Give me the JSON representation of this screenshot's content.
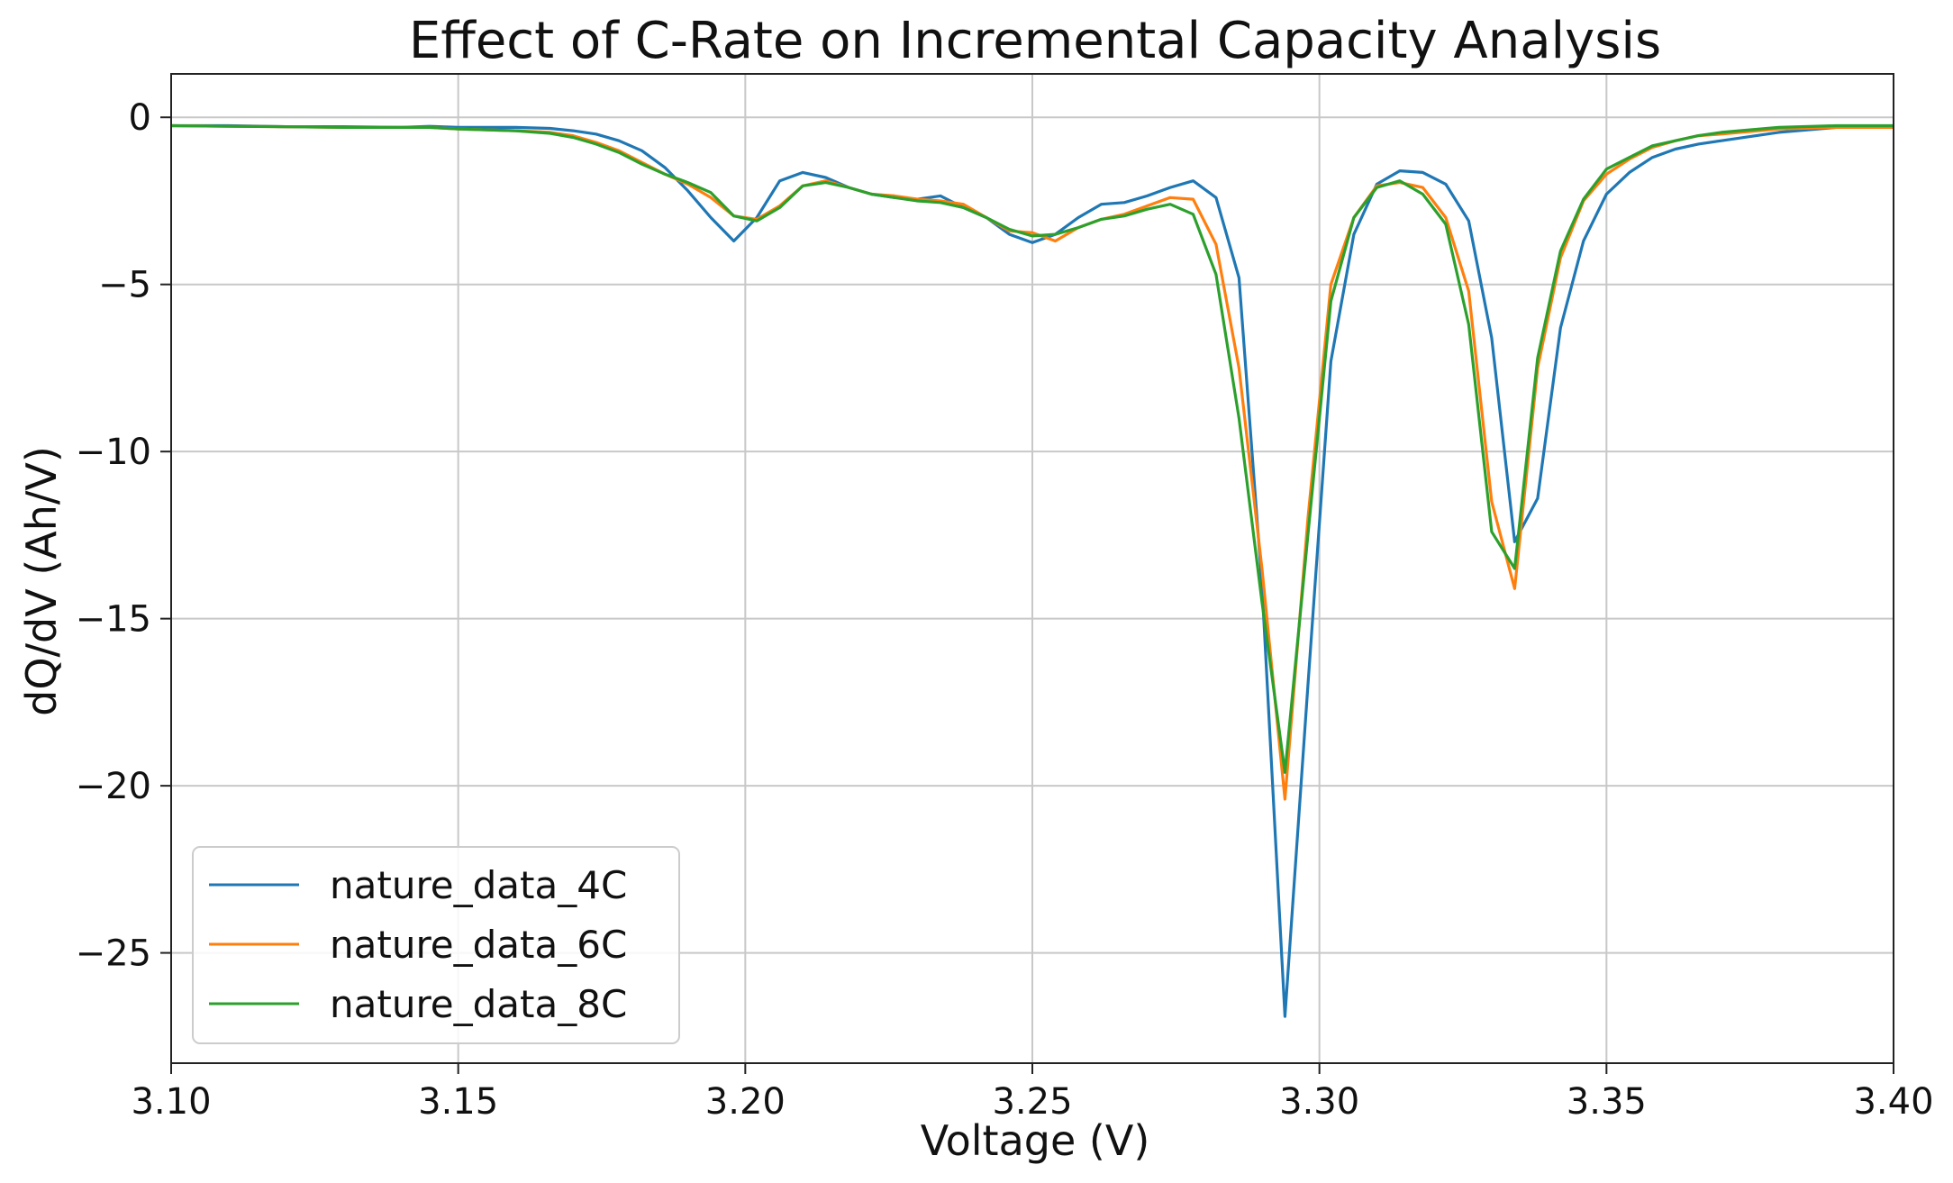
{
  "chart_data": {
    "type": "line",
    "title": "Effect of C-Rate on Incremental Capacity Analysis",
    "xlabel": "Voltage (V)",
    "ylabel": "dQ/dV (Ah/V)",
    "xlim": [
      3.1,
      3.4
    ],
    "ylim": [
      -28.3,
      1.3
    ],
    "xticks": [
      3.1,
      3.15,
      3.2,
      3.25,
      3.3,
      3.35,
      3.4
    ],
    "xtick_labels": [
      "3.10",
      "3.15",
      "3.20",
      "3.25",
      "3.30",
      "3.35",
      "3.40"
    ],
    "yticks": [
      0,
      -5,
      -10,
      -15,
      -20,
      -25
    ],
    "ytick_labels": [
      "0",
      "−5",
      "−10",
      "−15",
      "−20",
      "−25"
    ],
    "grid": true,
    "legend_position": "lower-left",
    "series": [
      {
        "name": "nature_data_4C",
        "color": "#1f77b4",
        "x": [
          3.1,
          3.11,
          3.12,
          3.13,
          3.14,
          3.145,
          3.15,
          3.16,
          3.166,
          3.17,
          3.174,
          3.178,
          3.182,
          3.186,
          3.19,
          3.194,
          3.198,
          3.202,
          3.206,
          3.21,
          3.214,
          3.218,
          3.222,
          3.226,
          3.23,
          3.234,
          3.238,
          3.242,
          3.246,
          3.25,
          3.254,
          3.258,
          3.262,
          3.266,
          3.27,
          3.274,
          3.278,
          3.282,
          3.286,
          3.29,
          3.294,
          3.298,
          3.302,
          3.306,
          3.31,
          3.314,
          3.318,
          3.322,
          3.326,
          3.33,
          3.334,
          3.338,
          3.342,
          3.346,
          3.35,
          3.354,
          3.358,
          3.362,
          3.366,
          3.37,
          3.38,
          3.39,
          3.4
        ],
        "y": [
          -0.25,
          -0.25,
          -0.28,
          -0.28,
          -0.3,
          -0.27,
          -0.3,
          -0.3,
          -0.33,
          -0.4,
          -0.5,
          -0.7,
          -1.0,
          -1.5,
          -2.2,
          -3.0,
          -3.7,
          -3.0,
          -1.9,
          -1.65,
          -1.8,
          -2.1,
          -2.3,
          -2.4,
          -2.45,
          -2.35,
          -2.7,
          -3.0,
          -3.5,
          -3.75,
          -3.5,
          -3.0,
          -2.6,
          -2.55,
          -2.35,
          -2.1,
          -1.9,
          -2.4,
          -4.8,
          -14.0,
          -26.9,
          -17.0,
          -7.3,
          -3.5,
          -2.0,
          -1.6,
          -1.65,
          -2.0,
          -3.1,
          -6.6,
          -12.7,
          -11.4,
          -6.3,
          -3.7,
          -2.3,
          -1.65,
          -1.2,
          -0.95,
          -0.8,
          -0.7,
          -0.45,
          -0.3,
          -0.3
        ]
      },
      {
        "name": "nature_data_6C",
        "color": "#ff7f0e",
        "x": [
          3.1,
          3.11,
          3.12,
          3.13,
          3.14,
          3.145,
          3.15,
          3.16,
          3.166,
          3.17,
          3.174,
          3.178,
          3.182,
          3.186,
          3.19,
          3.194,
          3.198,
          3.202,
          3.206,
          3.21,
          3.214,
          3.218,
          3.222,
          3.226,
          3.23,
          3.234,
          3.238,
          3.242,
          3.246,
          3.25,
          3.254,
          3.258,
          3.262,
          3.266,
          3.27,
          3.274,
          3.278,
          3.282,
          3.286,
          3.29,
          3.294,
          3.298,
          3.302,
          3.306,
          3.31,
          3.314,
          3.318,
          3.322,
          3.326,
          3.33,
          3.334,
          3.338,
          3.342,
          3.346,
          3.35,
          3.354,
          3.358,
          3.362,
          3.366,
          3.37,
          3.38,
          3.39,
          3.4
        ],
        "y": [
          -0.25,
          -0.27,
          -0.28,
          -0.3,
          -0.3,
          -0.3,
          -0.35,
          -0.4,
          -0.45,
          -0.55,
          -0.75,
          -1.0,
          -1.35,
          -1.7,
          -2.0,
          -2.4,
          -2.95,
          -3.05,
          -2.65,
          -2.05,
          -1.9,
          -2.1,
          -2.3,
          -2.35,
          -2.45,
          -2.5,
          -2.6,
          -3.0,
          -3.4,
          -3.45,
          -3.7,
          -3.3,
          -3.05,
          -2.9,
          -2.65,
          -2.4,
          -2.45,
          -3.8,
          -7.5,
          -13.5,
          -20.4,
          -12.0,
          -5.0,
          -3.0,
          -2.05,
          -1.95,
          -2.1,
          -3.0,
          -5.2,
          -11.5,
          -14.1,
          -7.5,
          -4.2,
          -2.5,
          -1.7,
          -1.25,
          -0.9,
          -0.7,
          -0.55,
          -0.5,
          -0.35,
          -0.3,
          -0.3
        ]
      },
      {
        "name": "nature_data_8C",
        "color": "#2ca02c",
        "x": [
          3.1,
          3.11,
          3.12,
          3.13,
          3.14,
          3.145,
          3.15,
          3.16,
          3.166,
          3.17,
          3.174,
          3.178,
          3.182,
          3.186,
          3.19,
          3.194,
          3.198,
          3.202,
          3.206,
          3.21,
          3.214,
          3.218,
          3.222,
          3.226,
          3.23,
          3.234,
          3.238,
          3.242,
          3.246,
          3.25,
          3.254,
          3.258,
          3.262,
          3.266,
          3.27,
          3.274,
          3.278,
          3.282,
          3.286,
          3.29,
          3.294,
          3.298,
          3.302,
          3.306,
          3.31,
          3.314,
          3.318,
          3.322,
          3.326,
          3.33,
          3.334,
          3.338,
          3.342,
          3.346,
          3.35,
          3.354,
          3.358,
          3.362,
          3.366,
          3.37,
          3.38,
          3.39,
          3.4
        ],
        "y": [
          -0.25,
          -0.27,
          -0.28,
          -0.3,
          -0.3,
          -0.3,
          -0.35,
          -0.4,
          -0.48,
          -0.6,
          -0.8,
          -1.05,
          -1.4,
          -1.7,
          -1.95,
          -2.25,
          -2.95,
          -3.1,
          -2.7,
          -2.05,
          -1.95,
          -2.1,
          -2.3,
          -2.4,
          -2.5,
          -2.55,
          -2.7,
          -3.0,
          -3.35,
          -3.55,
          -3.5,
          -3.3,
          -3.05,
          -2.95,
          -2.75,
          -2.6,
          -2.9,
          -4.7,
          -9.0,
          -14.5,
          -19.6,
          -12.5,
          -5.5,
          -3.0,
          -2.1,
          -1.9,
          -2.3,
          -3.2,
          -6.2,
          -12.4,
          -13.5,
          -7.2,
          -4.0,
          -2.45,
          -1.55,
          -1.2,
          -0.85,
          -0.7,
          -0.55,
          -0.45,
          -0.3,
          -0.25,
          -0.25
        ]
      }
    ]
  }
}
